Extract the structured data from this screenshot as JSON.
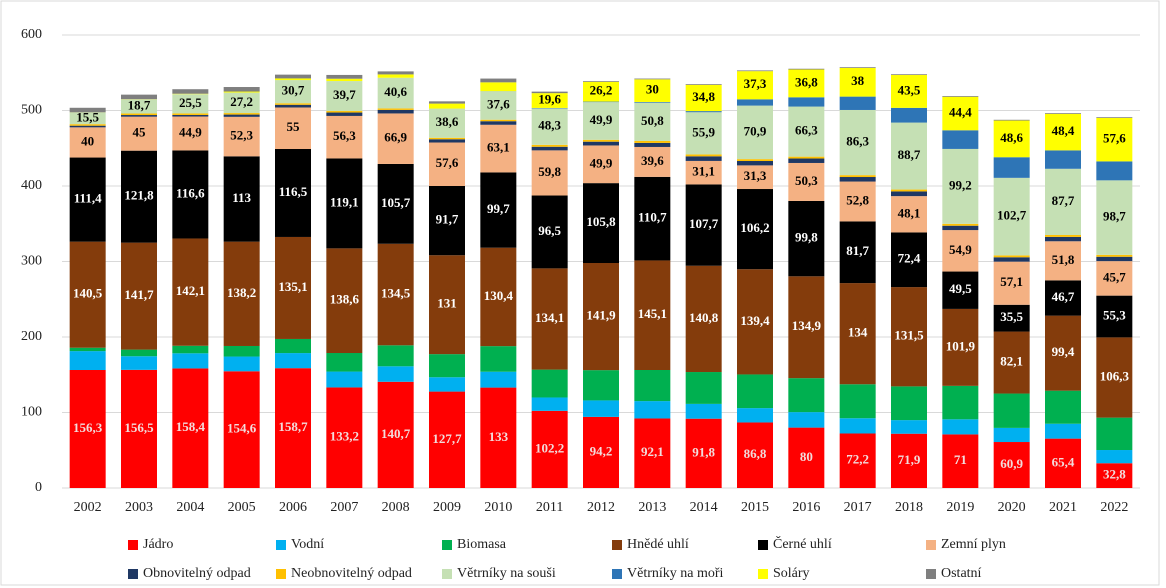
{
  "chart_data": {
    "type": "stacked_bar",
    "categories": [
      "2002",
      "2003",
      "2004",
      "2005",
      "2006",
      "2007",
      "2008",
      "2009",
      "2010",
      "2011",
      "2012",
      "2013",
      "2014",
      "2015",
      "2016",
      "2017",
      "2018",
      "2019",
      "2020",
      "2021",
      "2022"
    ],
    "ylim": [
      0,
      600
    ],
    "yticks": [
      0,
      100,
      200,
      300,
      400,
      500,
      600
    ],
    "grid": true,
    "series": [
      {
        "name": "Jádro",
        "color": "#ff0000",
        "label_color": "#f2dcdc",
        "values": [
          156.3,
          156.5,
          158.4,
          154.6,
          158.7,
          133.2,
          140.7,
          127.7,
          133,
          102.2,
          94.2,
          92.1,
          91.8,
          86.8,
          80,
          72.2,
          71.9,
          71,
          60.9,
          65.4,
          32.8
        ],
        "value_labels": [
          "156,3",
          "156,5",
          "158,4",
          "154,6",
          "158,7",
          "133,2",
          "140,7",
          "127,7",
          "133",
          "102,2",
          "94,2",
          "92,1",
          "91,8",
          "86,8",
          "80",
          "72,2",
          "71,9",
          "71",
          "60,9",
          "65,4",
          "32,8"
        ]
      },
      {
        "name": "Vodní",
        "color": "#00b0f0",
        "values": [
          25,
          18,
          20,
          19.5,
          20,
          21,
          20.5,
          19,
          21,
          17.7,
          21.8,
          23,
          19.6,
          19,
          20.5,
          20.2,
          18,
          20,
          18.7,
          19.7,
          17.5
        ]
      },
      {
        "name": "Biomasa",
        "color": "#00b050",
        "values": [
          4.5,
          8.8,
          10,
          14,
          18.7,
          24.6,
          27.8,
          30.6,
          33.9,
          36.9,
          40.1,
          41.2,
          42.2,
          44.6,
          45,
          45,
          44.7,
          44.3,
          45.5,
          43.8,
          42.9
        ]
      },
      {
        "name": "Hnědé uhlí",
        "color": "#843c0c",
        "label_color": "#ffffff",
        "values": [
          140.5,
          141.7,
          142.1,
          138.2,
          135.1,
          138.6,
          134.5,
          131,
          130.4,
          134.1,
          141.9,
          145.1,
          140.8,
          139.4,
          134.9,
          134,
          131.5,
          101.9,
          82.1,
          99.4,
          106.3
        ],
        "value_labels": [
          "140,5",
          "141,7",
          "142,1",
          "138,2",
          "135,1",
          "138,6",
          "134,5",
          "131",
          "130,4",
          "134,1",
          "141,9",
          "145,1",
          "140,8",
          "139,4",
          "134,9",
          "134",
          "131,5",
          "101,9",
          "82,1",
          "99,4",
          "106,3"
        ]
      },
      {
        "name": "Černé uhlí",
        "color": "#000000",
        "label_color": "#ffffff",
        "values": [
          111.4,
          121.8,
          116.6,
          113,
          116.5,
          119.1,
          105.7,
          91.7,
          99.7,
          96.5,
          105.8,
          110.7,
          107.7,
          106.2,
          99.8,
          81.7,
          72.4,
          49.5,
          35.5,
          46.7,
          55.3
        ],
        "value_labels": [
          "111,4",
          "121,8",
          "116,6",
          "113",
          "116,5",
          "119,1",
          "105,7",
          "91,7",
          "99,7",
          "96,5",
          "105,8",
          "110,7",
          "107,7",
          "106,2",
          "99,8",
          "81,7",
          "72,4",
          "49,5",
          "35,5",
          "46,7",
          "55,3"
        ]
      },
      {
        "name": "Zemní plyn",
        "color": "#f4b183",
        "label_color": "#000000",
        "values": [
          40,
          45,
          44.9,
          52.3,
          55,
          56.3,
          66.9,
          57.6,
          63.1,
          59.8,
          49.9,
          39.6,
          31.1,
          31.3,
          50.3,
          52.8,
          48.1,
          54.9,
          57.1,
          51.8,
          45.7
        ],
        "value_labels": [
          "40",
          "45",
          "44,9",
          "52,3",
          "55",
          "56,3",
          "66,9",
          "57,6",
          "63,1",
          "59,8",
          "49,9",
          "39,6",
          "31,1",
          "31,3",
          "50,3",
          "52,8",
          "48,1",
          "54,9",
          "57,1",
          "51,8",
          "45,7"
        ]
      },
      {
        "name": "Obnovitelný odpad",
        "color": "#1f3864",
        "values": [
          2.2,
          2.2,
          2.1,
          3,
          3.6,
          4.5,
          4.7,
          4.3,
          4.7,
          4.8,
          5,
          5.4,
          6.1,
          5.8,
          5.9,
          6,
          6.2,
          5.8,
          5.8,
          5.8,
          5.8
        ]
      },
      {
        "name": "Neobnovitelný odpad",
        "color": "#ffc000",
        "values": [
          2,
          2,
          2,
          2,
          2,
          2,
          2,
          2,
          2,
          2.5,
          2.5,
          2.5,
          2.5,
          2.5,
          2.5,
          2.5,
          2.5,
          2.5,
          2.5,
          2.5,
          2.5
        ]
      },
      {
        "name": "Větrníky na souši",
        "color": "#c5e0b4",
        "label_color": "#000000",
        "values": [
          15.5,
          18.7,
          25.5,
          27.2,
          30.7,
          39.7,
          40.6,
          38.6,
          37.6,
          48.3,
          49.9,
          50.8,
          55.9,
          70.9,
          66.3,
          86.3,
          88.7,
          99.2,
          102.7,
          87.7,
          98.7
        ],
        "value_labels": [
          "15,5",
          "18,7",
          "25,5",
          "27,2",
          "30,7",
          "39,7",
          "40,6",
          "38,6",
          "37,6",
          "48,3",
          "49,9",
          "50,8",
          "55,9",
          "70,9",
          "66,3",
          "86,3",
          "88,7",
          "99,2",
          "102,7",
          "87,7",
          "98,7"
        ]
      },
      {
        "name": "Větrníky na moři",
        "color": "#2e75b6",
        "values": [
          0,
          0,
          0,
          0,
          0,
          0,
          0,
          0.04,
          0.2,
          0.6,
          0.7,
          0.9,
          1.5,
          8.3,
          12.3,
          17.7,
          19.5,
          24.7,
          27.3,
          24.4,
          25.1
        ]
      },
      {
        "name": "Soláry",
        "color": "#ffff00",
        "label_color": "#000000",
        "values": [
          0.2,
          0.3,
          0.6,
          1.3,
          2.2,
          3.1,
          4.4,
          6.6,
          11.7,
          19.6,
          26.2,
          30,
          34.8,
          37.3,
          36.8,
          38,
          43.5,
          44.4,
          48.6,
          48.4,
          57.6
        ],
        "value_labels": [
          null,
          null,
          null,
          null,
          null,
          null,
          null,
          null,
          null,
          "19,6",
          "26,2",
          "30",
          "34,8",
          "37,3",
          "36,8",
          "38",
          "43,5",
          "44,4",
          "48,6",
          "48,4",
          "57,6"
        ]
      },
      {
        "name": "Ostatní",
        "color": "#7f7f7f",
        "values": [
          6,
          6,
          6,
          6,
          5,
          5,
          4,
          3,
          5,
          2,
          1,
          1,
          1,
          1,
          1,
          1,
          1,
          1,
          1,
          1,
          1
        ]
      }
    ]
  }
}
